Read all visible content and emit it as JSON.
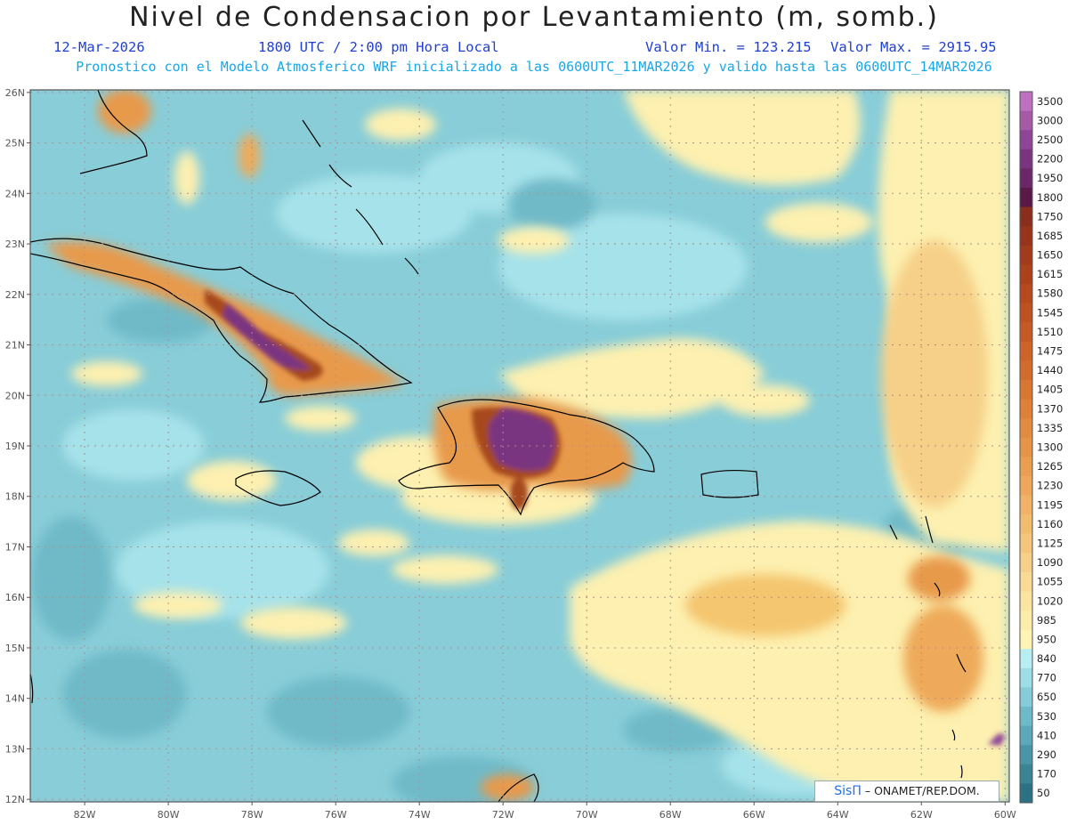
{
  "header": {
    "title": "Nivel de Condensacion por Levantamiento (m, somb.)",
    "date": "12-Mar-2026",
    "time": "1800 UTC / 2:00 pm Hora Local",
    "valor_min": "Valor Min. = 123.215",
    "valor_max": "Valor Max. = 2915.95",
    "description": "Pronostico con el Modelo Atmosferico WRF inicializado a las 0600UTC_11MAR2026 y valido hasta las  0600UTC_14MAR2026"
  },
  "map": {
    "lon_range": [
      -83.3,
      -59.9
    ],
    "lat_range": [
      11.95,
      26.05
    ],
    "lat_ticks": [
      "12N",
      "13N",
      "14N",
      "15N",
      "16N",
      "17N",
      "18N",
      "19N",
      "20N",
      "21N",
      "22N",
      "23N",
      "24N",
      "25N",
      "26N"
    ],
    "lon_ticks": [
      "82W",
      "80W",
      "78W",
      "76W",
      "74W",
      "72W",
      "70W",
      "68W",
      "66W",
      "64W",
      "62W",
      "60W"
    ],
    "regions": [
      {
        "name": "cuba",
        "level": "orange",
        "core": "purple"
      },
      {
        "name": "hispaniola",
        "level": "orange",
        "core": "purple"
      },
      {
        "name": "jamaica",
        "level": "yellow"
      },
      {
        "name": "puerto-rico",
        "level": "blue"
      },
      {
        "name": "northeast-atlantic",
        "level": "yellow"
      },
      {
        "name": "southeast-caribbean",
        "level": "yellow"
      }
    ]
  },
  "colorbar": {
    "levels": [
      "3500",
      "3000",
      "2500",
      "2200",
      "1950",
      "1800",
      "1750",
      "1685",
      "1650",
      "1615",
      "1580",
      "1545",
      "1510",
      "1475",
      "1440",
      "1405",
      "1370",
      "1335",
      "1300",
      "1265",
      "1230",
      "1195",
      "1160",
      "1125",
      "1090",
      "1055",
      "1020",
      "985",
      "950",
      "840",
      "770",
      "650",
      "530",
      "410",
      "290",
      "170",
      "50"
    ],
    "colors": [
      "#c070c0",
      "#a65aa6",
      "#8e4595",
      "#7a3580",
      "#6b2868",
      "#5a1a48",
      "#8a2e1e",
      "#96341c",
      "#a23a1c",
      "#ac421c",
      "#b44a1e",
      "#bc5220",
      "#c45a24",
      "#cc6428",
      "#d26c2c",
      "#d87632",
      "#de8038",
      "#e28a40",
      "#e69448",
      "#ea9e52",
      "#eea85c",
      "#f0b266",
      "#f2bc70",
      "#f4c67c",
      "#f6d088",
      "#f8da94",
      "#fae4a0",
      "#fcecaa",
      "#fef4b4",
      "#b8eef2",
      "#9ddde6",
      "#86ccd8",
      "#6fbac8",
      "#5aa8b8",
      "#4a96a6",
      "#3a8494",
      "#2c7282"
    ]
  },
  "credit": {
    "logo": "SisΠ",
    "text": " – ONAMET/REP.DOM."
  }
}
